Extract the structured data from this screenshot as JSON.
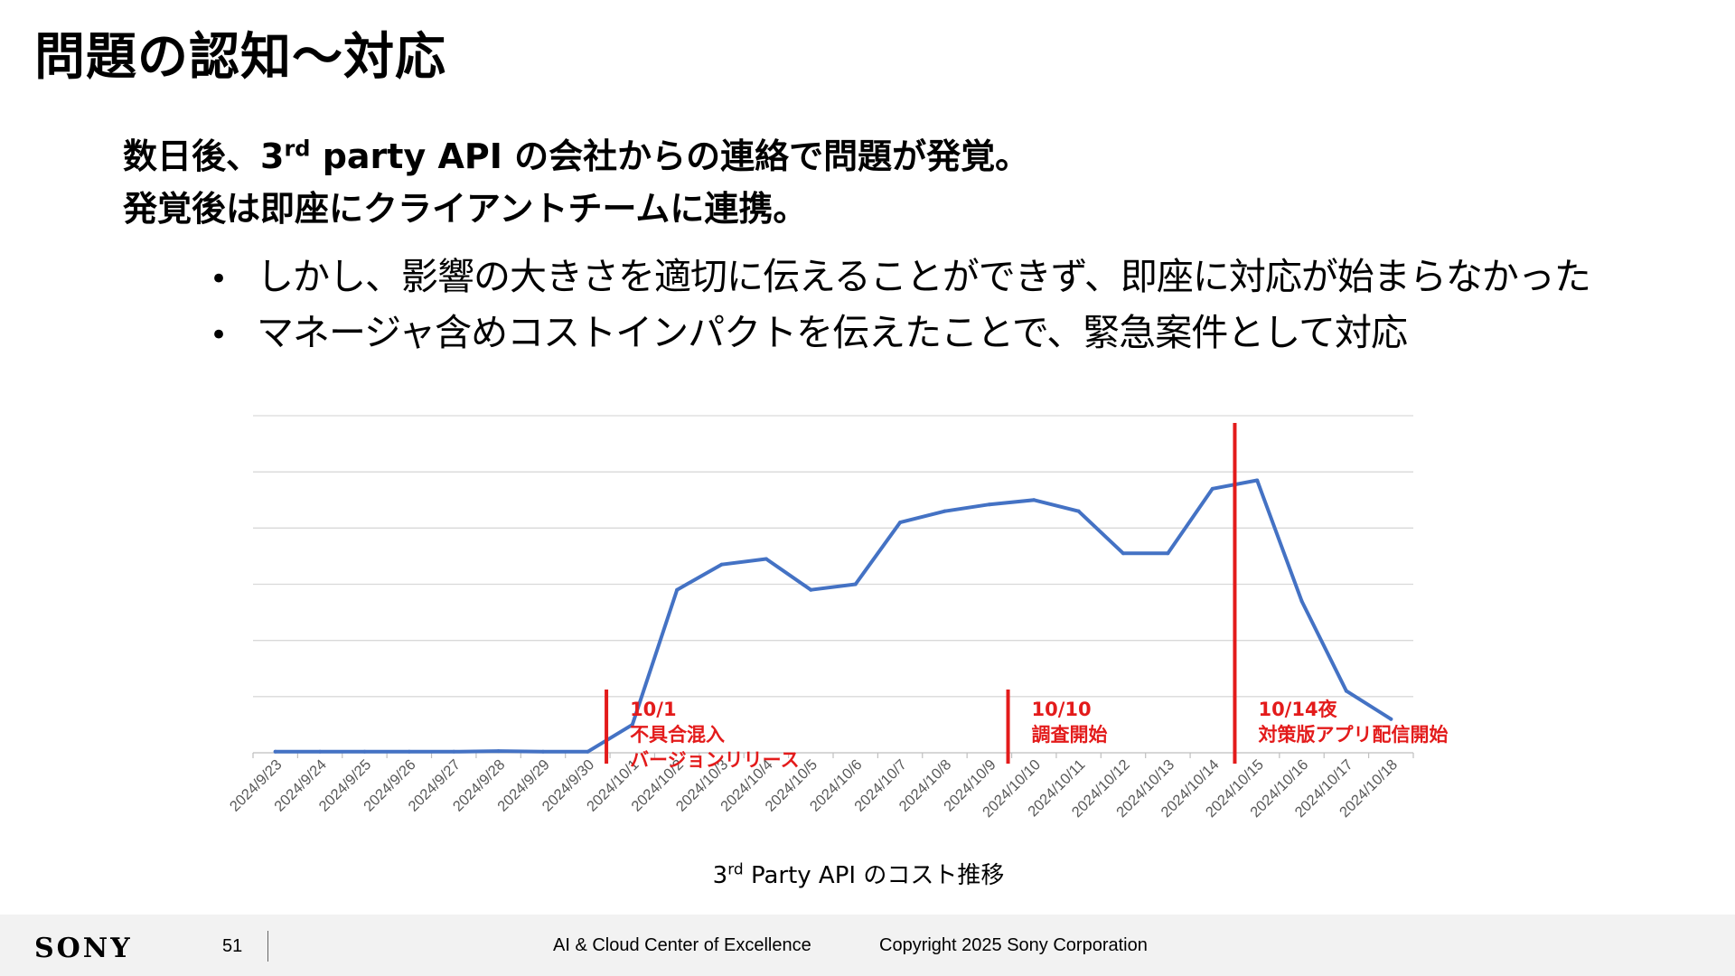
{
  "slide": {
    "title": "問題の認知～対応",
    "headline1_pre": "数日後、3",
    "headline1_sup": "rd",
    "headline1_post": " party API の会社からの連絡で問題が発覚。",
    "headline2": "発覚後は即座にクライアントチームに連携。",
    "bullets": [
      "しかし、影響の大きさを適切に伝えることができず、即座に対応が始まらなかった",
      "マネージャ含めコストインパクトを伝えたことで、緊急案件として対応"
    ],
    "bullet_marker": "•",
    "chart_caption_pre": "3",
    "chart_caption_sup": "rd",
    "chart_caption_post": " Party API のコスト推移"
  },
  "chart_data": {
    "type": "line",
    "categories": [
      "2024/9/23",
      "2024/9/24",
      "2024/9/25",
      "2024/9/26",
      "2024/9/27",
      "2024/9/28",
      "2024/9/29",
      "2024/9/30",
      "2024/10/1",
      "2024/10/2",
      "2024/10/3",
      "2024/10/4",
      "2024/10/5",
      "2024/10/6",
      "2024/10/7",
      "2024/10/8",
      "2024/10/9",
      "2024/10/10",
      "2024/10/11",
      "2024/10/12",
      "2024/10/13",
      "2024/10/14",
      "2024/10/15",
      "2024/10/16",
      "2024/10/17",
      "2024/10/18"
    ],
    "series": [
      {
        "values": [
          0.02,
          0.02,
          0.02,
          0.02,
          0.02,
          0.03,
          0.02,
          0.02,
          0.5,
          2.9,
          3.35,
          3.45,
          2.9,
          3.0,
          4.1,
          4.3,
          4.42,
          4.5,
          4.3,
          3.55,
          3.55,
          4.7,
          4.85,
          2.7,
          1.1,
          0.6
        ]
      }
    ],
    "ylim": [
      0,
      6
    ],
    "grid": true,
    "y_tick_labels_shown": false,
    "series_color": "#4472c4",
    "annotations": [
      {
        "x": "2024/10/1",
        "position": "before",
        "lines": [
          "10/1",
          "不具合混入",
          "バージョンリリース"
        ],
        "color": "#e31b1b"
      },
      {
        "x": "2024/10/10",
        "position": "before",
        "lines": [
          "10/10",
          "調査開始"
        ],
        "color": "#e31b1b"
      },
      {
        "x": "2024/10/14",
        "position": "after",
        "lines": [
          "10/14夜",
          "対策版アプリ配信開始"
        ],
        "color": "#e31b1b"
      }
    ]
  },
  "footer": {
    "logo": "SONY",
    "page_number": "51",
    "org": "AI & Cloud Center of Excellence",
    "copyright": "Copyright 2025 Sony Corporation"
  }
}
